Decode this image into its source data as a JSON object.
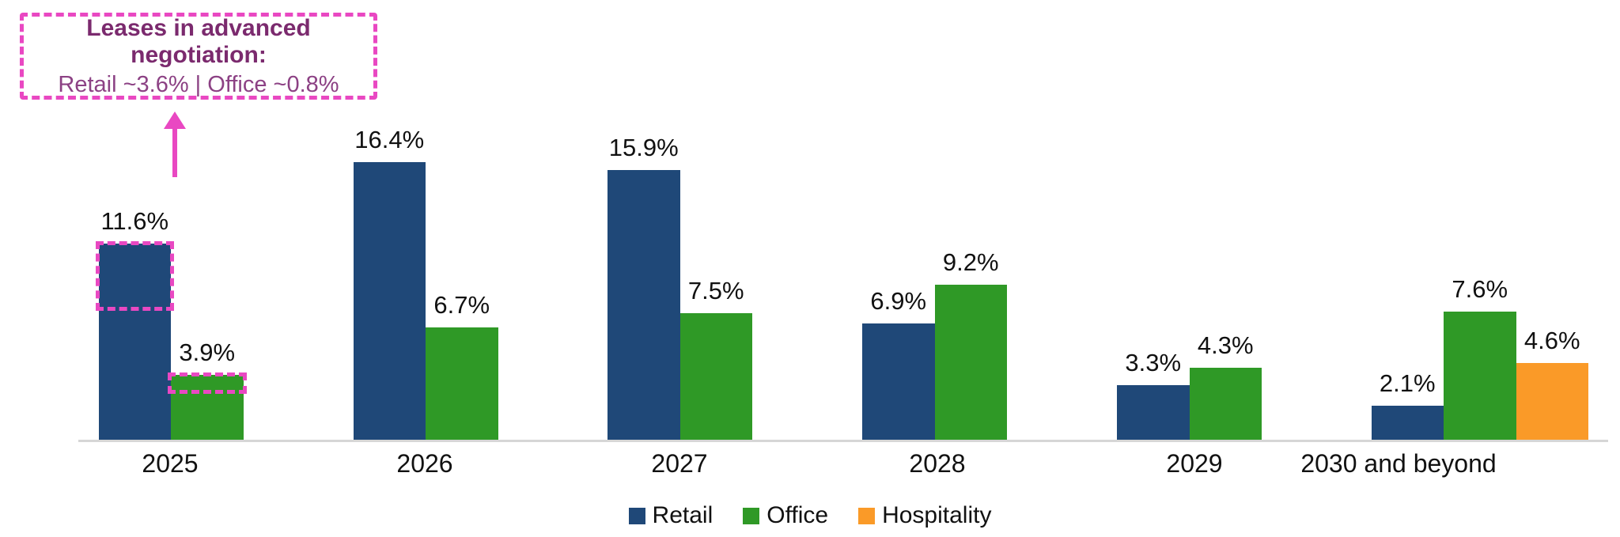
{
  "annotation": {
    "title": "Leases in advanced negotiation:",
    "detail": "Retail ~3.6%  |  Office ~0.8%",
    "border_color": "#e948c2",
    "title_color": "#7b2a6e",
    "detail_color": "#8c4184"
  },
  "chart_data": {
    "type": "bar",
    "title": "",
    "xlabel": "",
    "ylabel": "",
    "categories": [
      "2025",
      "2026",
      "2027",
      "2028",
      "2029",
      "2030 and beyond"
    ],
    "series": [
      {
        "name": "Retail",
        "color": "#1f4878",
        "values": [
          11.6,
          16.4,
          15.9,
          6.9,
          3.3,
          2.1
        ]
      },
      {
        "name": "Office",
        "color": "#2f9926",
        "values": [
          3.9,
          6.7,
          7.5,
          9.2,
          4.3,
          7.6
        ]
      },
      {
        "name": "Hospitality",
        "color": "#fa9a28",
        "values": [
          null,
          null,
          null,
          null,
          null,
          4.6
        ]
      }
    ],
    "value_suffix": "%",
    "ylim": [
      0,
      17
    ],
    "grid": false,
    "legend_position": "bottom",
    "highlights": [
      {
        "category": "2025",
        "series": "Retail",
        "pct": 3.6
      },
      {
        "category": "2025",
        "series": "Office",
        "pct": 0.8
      }
    ],
    "axis_line_color": "#d6d6d6",
    "label_color": "#111111"
  },
  "legend": {
    "items": [
      {
        "label": "Retail",
        "color": "#1f4878"
      },
      {
        "label": "Office",
        "color": "#2f9926"
      },
      {
        "label": "Hospitality",
        "color": "#fa9a28"
      }
    ]
  }
}
